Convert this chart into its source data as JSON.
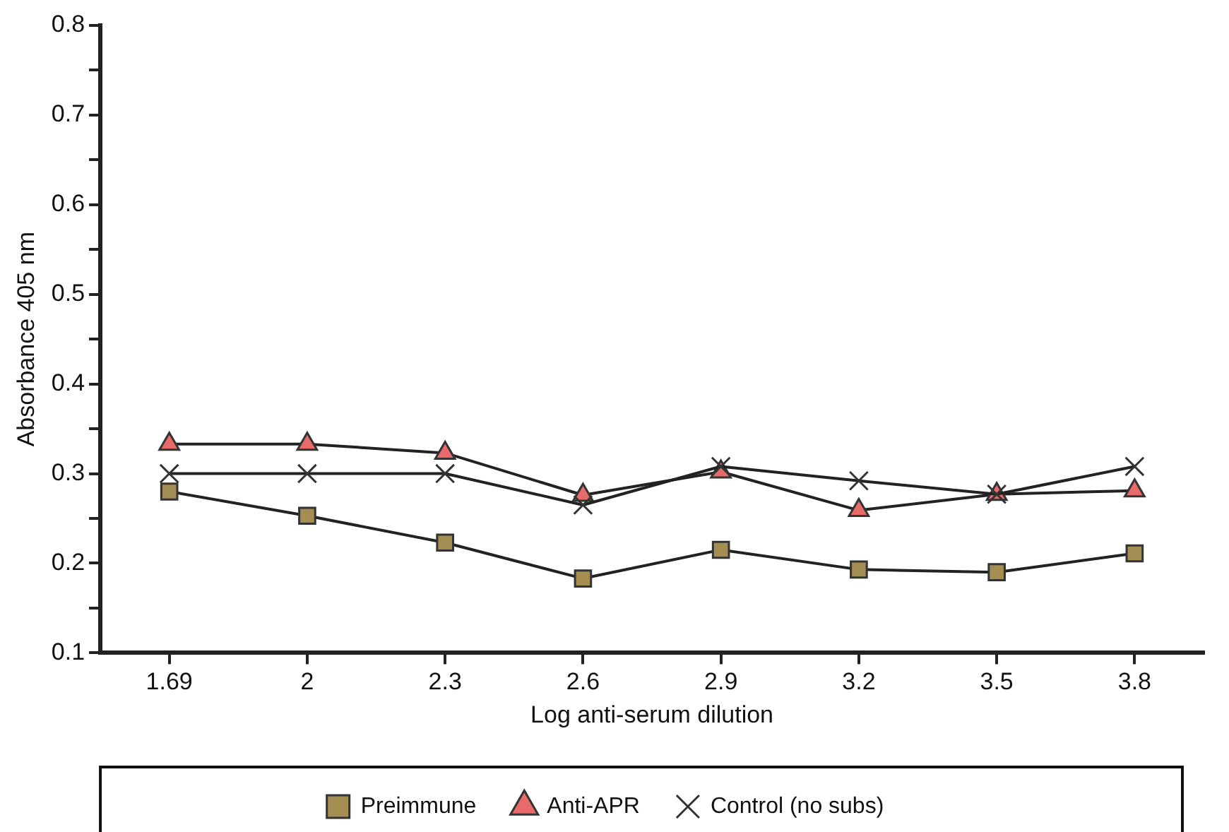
{
  "chart_data": {
    "type": "line",
    "xlabel": "Log anti-serum dilution",
    "ylabel": "Absorbance 405 nm",
    "categories": [
      "1.69",
      "2",
      "2.3",
      "2.6",
      "2.9",
      "3.2",
      "3.5",
      "3.8"
    ],
    "ylim": [
      0.1,
      0.8
    ],
    "yticks": [
      0.1,
      {
        "value": 0.15,
        "label": null
      },
      0.2,
      {
        "value": 0.25,
        "label": null
      },
      0.3,
      {
        "value": 0.35,
        "label": null
      },
      0.4,
      {
        "value": 0.45,
        "label": null
      },
      0.5,
      {
        "value": 0.55,
        "label": null
      },
      0.6,
      {
        "value": 0.65,
        "label": null
      },
      0.7,
      {
        "value": 0.75,
        "label": null
      },
      0.8
    ],
    "grid": false,
    "legend": "bottom",
    "line_style": "solid",
    "series": [
      {
        "name": "Preimmune",
        "color": "#a58e52",
        "marker": "square",
        "values": [
          0.28,
          0.253,
          0.223,
          0.183,
          0.215,
          0.193,
          0.19,
          0.211
        ]
      },
      {
        "name": "Anti-APR",
        "color": "#e86a6a",
        "marker": "triangle",
        "values": [
          0.333,
          0.333,
          0.323,
          0.276,
          0.302,
          0.259,
          0.277,
          0.281
        ]
      },
      {
        "name": "Control (no subs)",
        "color": "#333333",
        "marker": "cross",
        "values": [
          0.3,
          0.3,
          0.3,
          0.265,
          0.308,
          0.292,
          0.277,
          0.308
        ]
      }
    ]
  }
}
